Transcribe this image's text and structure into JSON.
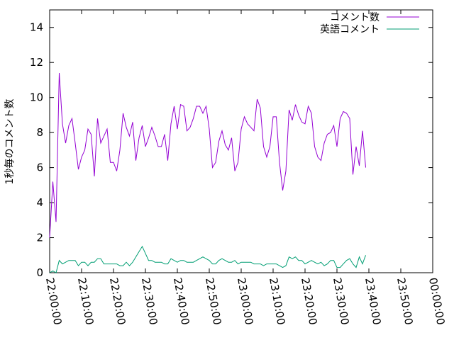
{
  "chart_data": {
    "type": "line",
    "title": "",
    "ylabel": "1秒毎のコメント数",
    "xlabel": "",
    "ylim": [
      0,
      15
    ],
    "yticks": [
      0,
      2,
      4,
      6,
      8,
      10,
      12,
      14
    ],
    "xlim_minutes": [
      1320,
      1440
    ],
    "xticks": [
      "22:00:00",
      "22:10:00",
      "22:20:00",
      "22:30:00",
      "22:40:00",
      "22:50:00",
      "23:00:00",
      "23:10:00",
      "23:20:00",
      "23:30:00",
      "23:40:00",
      "23:50:00",
      "00:00:00"
    ],
    "legend_position": "top-right",
    "grid": false,
    "series": [
      {
        "name": "コメント数",
        "color": "#9400d3",
        "x_start": "22:00:00",
        "x_step_seconds": 60,
        "values": [
          2.0,
          5.2,
          2.9,
          11.4,
          8.5,
          7.4,
          8.4,
          8.8,
          7.4,
          5.9,
          6.6,
          7.0,
          8.2,
          7.9,
          5.5,
          8.8,
          7.4,
          7.8,
          8.2,
          6.3,
          6.3,
          5.8,
          7.0,
          9.1,
          8.3,
          7.8,
          8.6,
          6.4,
          7.7,
          8.4,
          7.2,
          7.7,
          8.3,
          7.8,
          7.2,
          7.2,
          7.9,
          6.4,
          8.5,
          9.5,
          8.2,
          9.6,
          9.5,
          8.1,
          8.3,
          8.8,
          9.5,
          9.5,
          9.1,
          9.5,
          8.2,
          6.0,
          6.3,
          7.5,
          8.1,
          7.3,
          7.0,
          7.7,
          5.8,
          6.3,
          8.2,
          8.9,
          8.5,
          8.3,
          8.1,
          9.9,
          9.4,
          7.2,
          6.6,
          7.2,
          8.9,
          8.9,
          6.3,
          4.7,
          5.8,
          9.3,
          8.7,
          9.6,
          9.0,
          8.6,
          8.5,
          9.5,
          9.1,
          7.2,
          6.6,
          6.4,
          7.4,
          7.9,
          8.0,
          8.4,
          7.2,
          8.8,
          9.2,
          9.1,
          8.8,
          5.6,
          7.2,
          6.1,
          8.1,
          6.0
        ]
      },
      {
        "name": "英語コメント",
        "color": "#009e73",
        "x_start": "22:00:00",
        "x_step_seconds": 60,
        "values": [
          0.0,
          0.1,
          0.0,
          0.7,
          0.5,
          0.6,
          0.7,
          0.7,
          0.7,
          0.4,
          0.6,
          0.6,
          0.4,
          0.6,
          0.6,
          0.8,
          0.8,
          0.5,
          0.5,
          0.5,
          0.5,
          0.5,
          0.4,
          0.4,
          0.6,
          0.4,
          0.6,
          0.9,
          1.2,
          1.5,
          1.1,
          0.7,
          0.7,
          0.6,
          0.6,
          0.6,
          0.5,
          0.5,
          0.8,
          0.7,
          0.6,
          0.7,
          0.7,
          0.6,
          0.6,
          0.6,
          0.7,
          0.8,
          0.9,
          0.8,
          0.7,
          0.5,
          0.5,
          0.7,
          0.8,
          0.7,
          0.6,
          0.6,
          0.7,
          0.5,
          0.6,
          0.6,
          0.6,
          0.6,
          0.5,
          0.5,
          0.5,
          0.4,
          0.5,
          0.5,
          0.5,
          0.5,
          0.4,
          0.3,
          0.4,
          0.9,
          0.8,
          0.9,
          0.7,
          0.7,
          0.5,
          0.6,
          0.7,
          0.6,
          0.5,
          0.6,
          0.4,
          0.5,
          0.7,
          0.7,
          0.3,
          0.3,
          0.5,
          0.7,
          0.8,
          0.5,
          0.3,
          0.9,
          0.5,
          1.0
        ]
      }
    ]
  }
}
